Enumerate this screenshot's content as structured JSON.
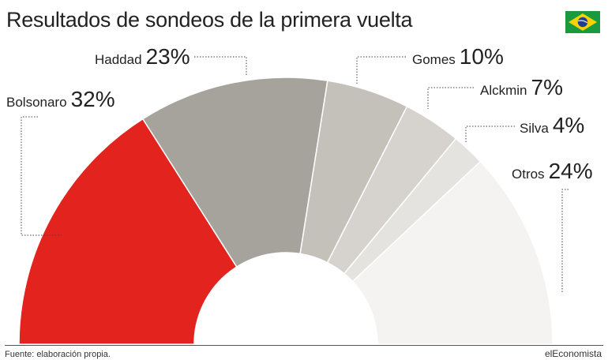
{
  "title": "Resultados de sondeos de la primera vuelta",
  "source": "Fuente: elaboración propia.",
  "brand": "elEconomista",
  "flag_icon": "brazil-flag-icon",
  "chart_data": {
    "type": "pie",
    "subtype": "semicircle-donut",
    "series": [
      {
        "name": "Bolsonaro",
        "label": "32%",
        "value": 32,
        "color": "#e3231e"
      },
      {
        "name": "Haddad",
        "label": "23%",
        "value": 23,
        "color": "#a6a29c"
      },
      {
        "name": "Gomes",
        "label": "10%",
        "value": 10,
        "color": "#c4c0ba"
      },
      {
        "name": "Alckmin",
        "label": "7%",
        "value": 7,
        "color": "#d6d3ce"
      },
      {
        "name": "Silva",
        "label": "4%",
        "value": 4,
        "color": "#e5e3e0"
      },
      {
        "name": "Otros",
        "label": "24%",
        "value": 24,
        "color": "#f4f3f1"
      }
    ]
  }
}
